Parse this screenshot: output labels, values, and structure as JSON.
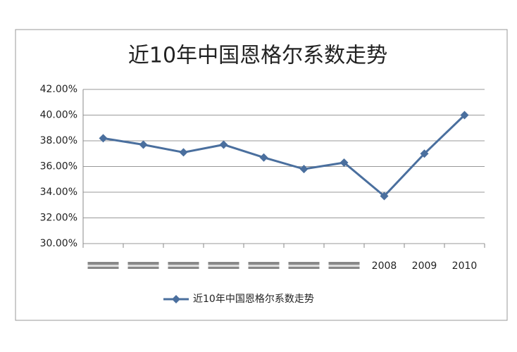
{
  "chart_data": {
    "type": "line",
    "title": "近10年中国恩格尔系数走势",
    "categories": [
      null,
      null,
      null,
      null,
      null,
      null,
      null,
      "2008",
      "2009",
      "2010"
    ],
    "series": [
      {
        "name": "近10年中国恩格尔系数走势",
        "color": "#4a6f9e",
        "values": [
          38.2,
          37.7,
          37.1,
          37.7,
          36.7,
          35.8,
          36.3,
          33.7,
          37.0,
          40.0
        ]
      }
    ],
    "ylim": [
      30,
      42
    ],
    "yticks": [
      {
        "value": 30,
        "label": "30.00%"
      },
      {
        "value": 32,
        "label": "32.00%"
      },
      {
        "value": 34,
        "label": "34.00%"
      },
      {
        "value": 36,
        "label": "36.00%"
      },
      {
        "value": 38,
        "label": "38.00%"
      },
      {
        "value": 40,
        "label": "40.00%"
      },
      {
        "value": 42,
        "label": "42.00%"
      }
    ],
    "grid": true,
    "legend": "bottom"
  }
}
